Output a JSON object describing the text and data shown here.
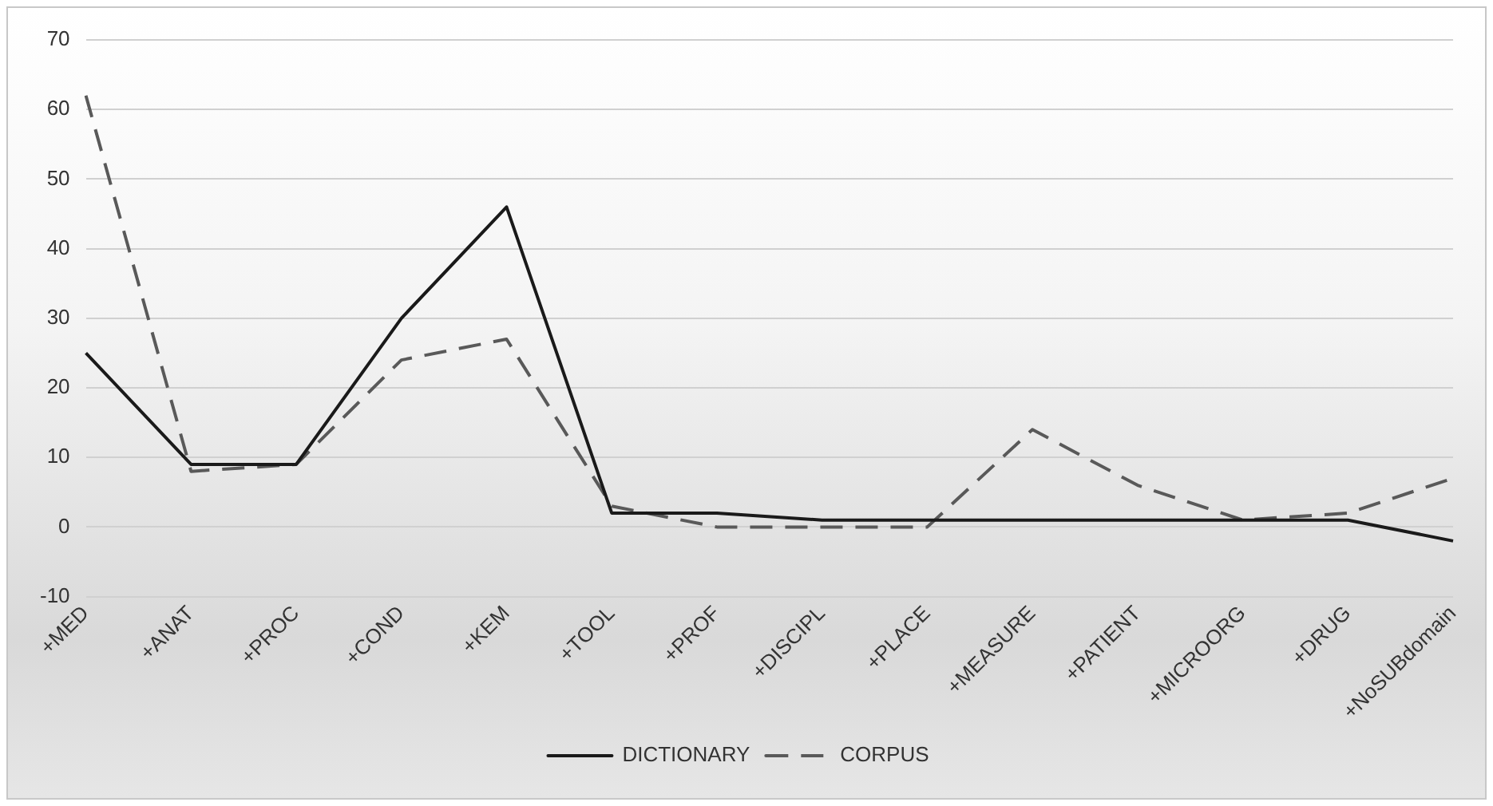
{
  "chart_data": {
    "type": "line",
    "categories": [
      "+MED",
      "+ANAT",
      "+PROC",
      "+COND",
      "+KEM",
      "+TOOL",
      "+PROF",
      "+DISCIPL",
      "+PLACE",
      "+MEASURE",
      "+PATIENT",
      "+MICROORG",
      "+DRUG",
      "+NoSUBdomain"
    ],
    "series": [
      {
        "name": "DICTIONARY",
        "color": "#1a1a1a",
        "line_style": "solid",
        "values": [
          25,
          9,
          9,
          30,
          46,
          2,
          2,
          1,
          1,
          1,
          1,
          1,
          1,
          -2
        ]
      },
      {
        "name": "CORPUS",
        "color": "#595959",
        "line_style": "dashed",
        "values": [
          62,
          8,
          9,
          24,
          27,
          3,
          0,
          0,
          0,
          14,
          6,
          1,
          2,
          7
        ]
      }
    ],
    "ylim": [
      -10,
      70
    ],
    "yticks": [
      -10,
      0,
      10,
      20,
      30,
      40,
      50,
      60,
      70
    ],
    "grid": "y",
    "legend": "bottom",
    "marker": "none"
  }
}
